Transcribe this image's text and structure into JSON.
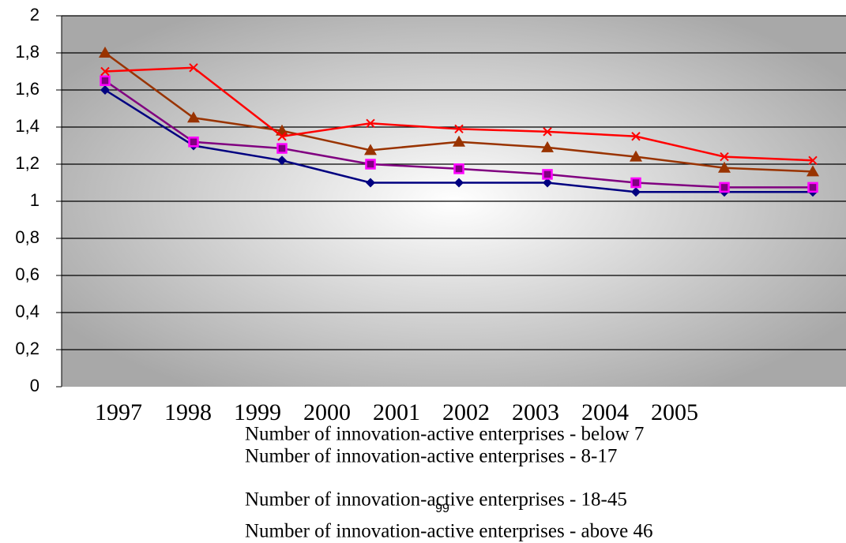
{
  "chart_data": {
    "type": "line",
    "categories": [
      "1997",
      "1998",
      "1999",
      "2000",
      "2001",
      "2002",
      "2003",
      "2004",
      "2005"
    ],
    "series": [
      {
        "name": "Number of innovation-active enterprises - below 7",
        "color": "#000080",
        "marker": "diamond",
        "values": [
          1.6,
          1.3,
          1.22,
          1.1,
          1.1,
          1.1,
          1.05,
          1.05,
          1.05
        ]
      },
      {
        "name": "Number of innovation-active enterprises - 8-17",
        "color": "#800080",
        "marker": "square",
        "values": [
          1.65,
          1.32,
          1.285,
          1.2,
          1.175,
          1.145,
          1.1,
          1.075,
          1.075
        ]
      },
      {
        "name": "Number of innovation-active enterprises - 18-45",
        "color": "#993300",
        "marker": "triangle",
        "values": [
          1.8,
          1.45,
          1.38,
          1.275,
          1.32,
          1.29,
          1.24,
          1.18,
          1.16
        ]
      },
      {
        "name": "Number of innovation-active enterprises - above 46",
        "color": "#ff0000",
        "marker": "x",
        "values": [
          1.7,
          1.72,
          1.35,
          1.42,
          1.39,
          1.375,
          1.35,
          1.24,
          1.22
        ]
      }
    ],
    "ylim": [
      0,
      2
    ],
    "yticks": [
      0,
      {
        "value": 0.2,
        "label": "0,2"
      },
      {
        "value": 0.4,
        "label": "0,4"
      },
      {
        "value": 0.6,
        "label": "0,6"
      },
      {
        "value": 0.8,
        "label": "0,8"
      },
      1,
      {
        "value": 1.2,
        "label": "1,2"
      },
      {
        "value": 1.4,
        "label": "1,4"
      },
      {
        "value": 1.6,
        "label": "1,6"
      },
      {
        "value": 1.8,
        "label": "1,8"
      },
      2
    ],
    "grid": true
  },
  "page_number": "99"
}
